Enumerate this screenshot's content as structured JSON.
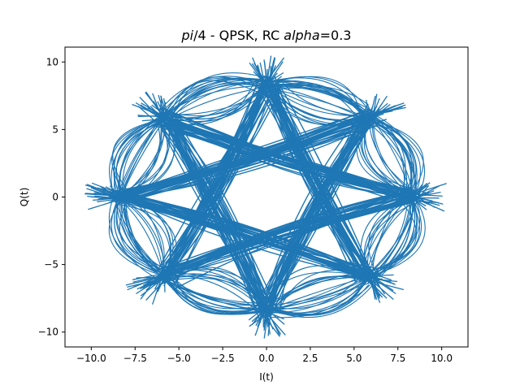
{
  "chart_data": {
    "type": "line",
    "title": {
      "part1": "pi",
      "part2": "/4 - QPSK, RC ",
      "part3": "alpha",
      "part4": "=0.3"
    },
    "xlabel": "I(t)",
    "ylabel": "Q(t)",
    "xlim": [
      -11.5,
      11.5
    ],
    "ylim": [
      -11.1,
      11.1
    ],
    "xticks": [
      -10.0,
      -7.5,
      -5.0,
      -2.5,
      0.0,
      2.5,
      5.0,
      7.5,
      10.0
    ],
    "xtick_labels": [
      "−10.0",
      "−7.5",
      "−5.0",
      "−2.5",
      "0.0",
      "2.5",
      "5.0",
      "7.5",
      "10.0"
    ],
    "yticks": [
      -10,
      -5,
      0,
      5,
      10
    ],
    "ytick_labels": [
      "−10",
      "−5",
      "0",
      "5",
      "10"
    ],
    "grid": false,
    "series": [
      {
        "constellation_points": [
          [
            8.3,
            0.0
          ],
          [
            5.87,
            5.87
          ],
          [
            0.0,
            8.3
          ],
          [
            -5.87,
            5.87
          ],
          [
            -8.3,
            0.0
          ],
          [
            -5.87,
            -5.87
          ],
          [
            0.0,
            -8.3
          ],
          [
            5.87,
            -5.87
          ]
        ]
      }
    ],
    "colors": {
      "series": "#1f77b4",
      "axes": "#000000"
    }
  }
}
